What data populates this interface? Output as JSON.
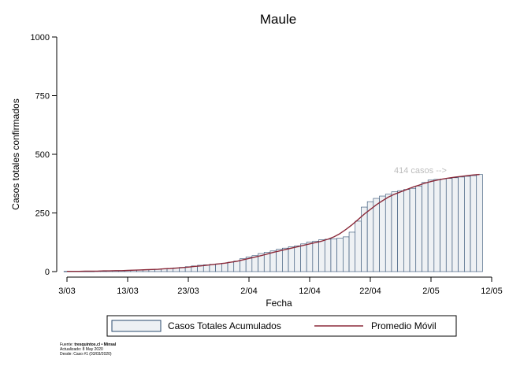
{
  "chart_data": {
    "type": "bar",
    "title": "Maule",
    "xlabel": "Fecha",
    "ylabel": "Casos totales confirmados",
    "ylim": [
      0,
      1000
    ],
    "yticks": [
      "0",
      "250",
      "500",
      "750",
      "1000"
    ],
    "xtick_labels": [
      "3/03",
      "13/03",
      "23/03",
      "2/04",
      "12/04",
      "22/04",
      "2/05",
      "12/05"
    ],
    "x_start_date": "2020-03-03",
    "x_end_date": "2020-05-12",
    "series": [
      {
        "name": "Casos Totales Acumulados",
        "type": "bar",
        "x_start": "2020-03-03",
        "values": [
          1,
          1,
          1,
          1,
          1,
          2,
          2,
          3,
          3,
          4,
          5,
          6,
          7,
          8,
          9,
          10,
          12,
          14,
          16,
          18,
          21,
          24,
          27,
          29,
          31,
          33,
          36,
          40,
          45,
          55,
          62,
          68,
          77,
          82,
          88,
          95,
          100,
          106,
          110,
          118,
          126,
          130,
          136,
          138,
          140,
          142,
          148,
          168,
          215,
          275,
          298,
          312,
          322,
          330,
          340,
          345,
          350,
          355,
          365,
          380,
          390,
          393,
          395,
          397,
          400,
          403,
          406,
          409,
          414
        ],
        "fill": "#eef1f4",
        "stroke": "#2a4a6e"
      },
      {
        "name": "Promedio Móvil",
        "type": "line",
        "x_start": "2020-03-03",
        "values": [
          1,
          1,
          1,
          2,
          2,
          2,
          3,
          3,
          4,
          4,
          5,
          6,
          7,
          8,
          9,
          10,
          12,
          13,
          15,
          17,
          19,
          22,
          24,
          27,
          30,
          33,
          36,
          40,
          44,
          50,
          56,
          62,
          68,
          75,
          82,
          88,
          94,
          100,
          106,
          112,
          118,
          124,
          130,
          138,
          148,
          162,
          180,
          200,
          222,
          245,
          265,
          285,
          302,
          318,
          330,
          340,
          350,
          360,
          368,
          377,
          384,
          390,
          395,
          399,
          403,
          406,
          409,
          412,
          414
        ],
        "color": "#8b2a3a"
      }
    ],
    "annotation": "414 casos -->",
    "grid": false,
    "legend_position": "bottom"
  },
  "footer": {
    "source_prefix": "Fuente: ",
    "source_bold": "tresquintos.cl • Minsal",
    "updated": "Actualizado: 8 May 2020",
    "since": "Desde: Caso #1  (03/03/2020)"
  }
}
